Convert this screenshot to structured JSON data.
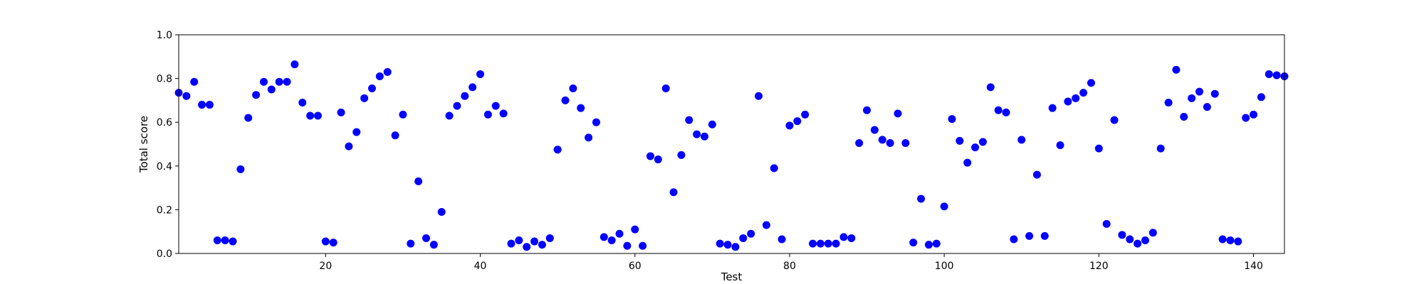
{
  "chart_data": {
    "type": "scatter",
    "title": "",
    "xlabel": "Test",
    "ylabel": "Total score",
    "xlim": [
      1,
      144
    ],
    "ylim": [
      0.0,
      1.0
    ],
    "xticks": [
      20,
      40,
      60,
      80,
      100,
      120,
      140
    ],
    "xtick_labels": [
      "20",
      "40",
      "60",
      "80",
      "100",
      "120",
      "140"
    ],
    "yticks": [
      0.0,
      0.2,
      0.4,
      0.6,
      0.8,
      1.0
    ],
    "ytick_labels": [
      "0.0",
      "0.2",
      "0.4",
      "0.6",
      "0.8",
      "1.0"
    ],
    "grid": false,
    "marker_color": "#0000ff",
    "series": [
      {
        "x": [
          1,
          2,
          3,
          4,
          5,
          6,
          7,
          8,
          9,
          10,
          11,
          12,
          13,
          14,
          15,
          16,
          17,
          18,
          19,
          20,
          21,
          22,
          23,
          24,
          25,
          26,
          27,
          28,
          29,
          30,
          31,
          32,
          33,
          34,
          35,
          36,
          37,
          38,
          39,
          40,
          41,
          42,
          43,
          44,
          45,
          46,
          47,
          48,
          49,
          50,
          51,
          52,
          53,
          54,
          55,
          56,
          57,
          58,
          59,
          60,
          61,
          62,
          63,
          64,
          65,
          66,
          67,
          68,
          69,
          70,
          71,
          72,
          73,
          74,
          75,
          76,
          77,
          78,
          79,
          80,
          81,
          82,
          83,
          84,
          85,
          86,
          87,
          88,
          89,
          90,
          91,
          92,
          93,
          94,
          95,
          96,
          97,
          98,
          99,
          100,
          101,
          102,
          103,
          104,
          105,
          106,
          107,
          108,
          109,
          110,
          111,
          112,
          113,
          114,
          115,
          116,
          117,
          118,
          119,
          120,
          121,
          122,
          123,
          124,
          125,
          126,
          127,
          128,
          129,
          130,
          131,
          132,
          133,
          134,
          135,
          136,
          137,
          138,
          139,
          140,
          141,
          142,
          143,
          144
        ],
        "y": [
          0.735,
          0.72,
          0.785,
          0.68,
          0.68,
          0.06,
          0.06,
          0.055,
          0.385,
          0.62,
          0.725,
          0.785,
          0.75,
          0.785,
          0.785,
          0.865,
          0.69,
          0.63,
          0.63,
          0.055,
          0.05,
          0.645,
          0.49,
          0.555,
          0.71,
          0.755,
          0.81,
          0.83,
          0.54,
          0.635,
          0.045,
          0.33,
          0.07,
          0.04,
          0.19,
          0.63,
          0.675,
          0.72,
          0.76,
          0.82,
          0.635,
          0.675,
          0.64,
          0.045,
          0.06,
          0.03,
          0.055,
          0.04,
          0.07,
          0.475,
          0.7,
          0.755,
          0.665,
          0.53,
          0.6,
          0.075,
          0.06,
          0.09,
          0.035,
          0.11,
          0.035,
          0.445,
          0.43,
          0.755,
          0.28,
          0.45,
          0.61,
          0.545,
          0.535,
          0.59,
          0.045,
          0.04,
          0.03,
          0.07,
          0.09,
          0.72,
          0.13,
          0.39,
          0.065,
          0.585,
          0.605,
          0.635,
          0.045,
          0.045,
          0.045,
          0.045,
          0.075,
          0.07,
          0.505,
          0.655,
          0.565,
          0.52,
          0.505,
          0.64,
          0.505,
          0.05,
          0.25,
          0.04,
          0.045,
          0.215,
          0.615,
          0.515,
          0.415,
          0.485,
          0.51,
          0.76,
          0.655,
          0.645,
          0.065,
          0.52,
          0.08,
          0.36,
          0.08,
          0.665,
          0.495,
          0.695,
          0.71,
          0.735,
          0.78,
          0.48,
          0.135,
          0.61,
          0.085,
          0.065,
          0.045,
          0.06,
          0.095,
          0.48,
          0.69,
          0.84,
          0.625,
          0.71,
          0.74,
          0.67,
          0.73,
          0.065,
          0.06,
          0.055,
          0.62,
          0.635,
          0.715,
          0.82,
          0.815,
          0.81
        ]
      }
    ]
  }
}
